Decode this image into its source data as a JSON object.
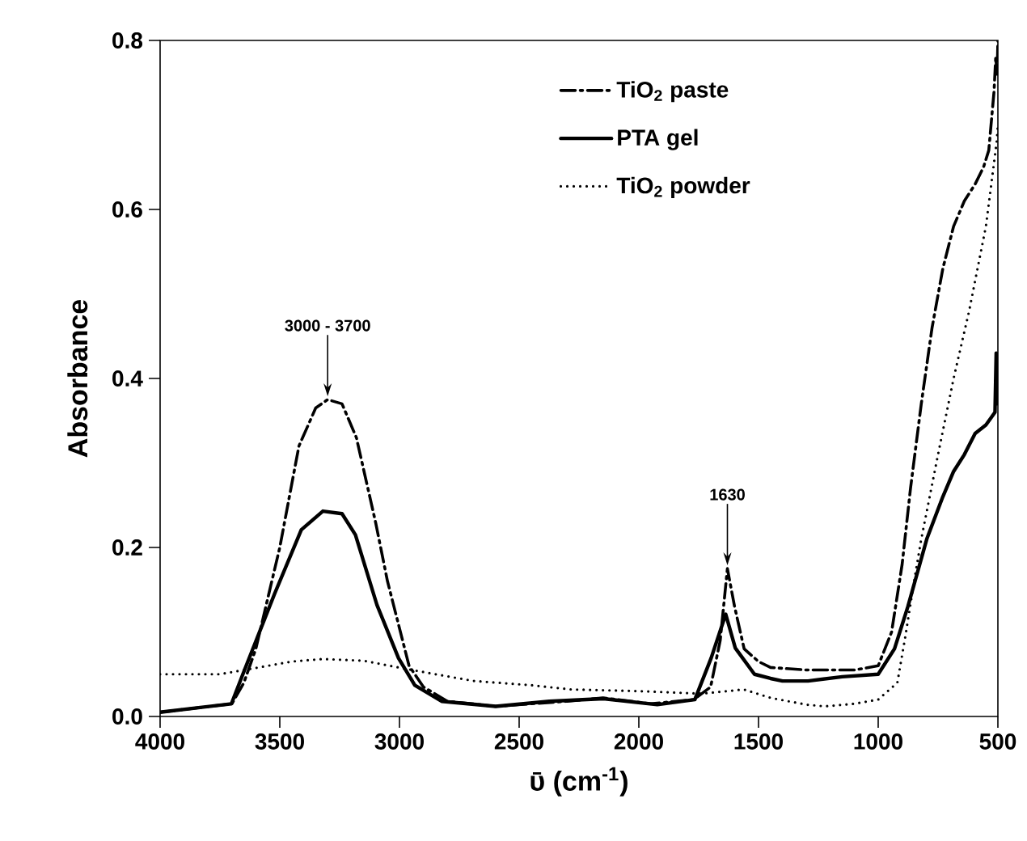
{
  "chart_data": {
    "type": "line",
    "xlabel": "ῡ (cm$^{-1}$)",
    "ylabel": "Absorbance",
    "xlim": [
      4000,
      500
    ],
    "xticks": [
      4000,
      3500,
      3000,
      2500,
      2000,
      1500,
      1000,
      500
    ],
    "ylim": [
      0,
      0.8
    ],
    "yticks": [
      {
        "value": 0,
        "label": "0.0"
      },
      {
        "value": 0.2,
        "label": "0.2"
      },
      {
        "value": 0.4,
        "label": "0.4"
      },
      {
        "value": 0.6,
        "label": "0.6"
      },
      {
        "value": 0.8,
        "label": "0.8"
      }
    ],
    "grid": false,
    "legend": "top right",
    "marker": "none",
    "series": [
      {
        "name": "TiO$_{2}$ paste",
        "color": "#000000",
        "line_style": "dashdot",
        "x": [
          4000,
          3700,
          3650,
          3600,
          3500,
          3420,
          3350,
          3300,
          3240,
          3180,
          3100,
          3050,
          2960,
          2900,
          2800,
          2600,
          2300,
          2150,
          1950,
          1770,
          1700,
          1660,
          1630,
          1600,
          1560,
          1500,
          1450,
          1300,
          1100,
          1000,
          944,
          900,
          865,
          820,
          775,
          730,
          685,
          640,
          595,
          560,
          538,
          516,
          509,
          503,
          500
        ],
        "values": [
          0.005,
          0.015,
          0.04,
          0.08,
          0.2,
          0.32,
          0.365,
          0.375,
          0.37,
          0.33,
          0.23,
          0.16,
          0.06,
          0.035,
          0.018,
          0.012,
          0.018,
          0.022,
          0.015,
          0.02,
          0.035,
          0.09,
          0.175,
          0.13,
          0.08,
          0.065,
          0.058,
          0.055,
          0.055,
          0.06,
          0.1,
          0.18,
          0.27,
          0.37,
          0.46,
          0.53,
          0.58,
          0.61,
          0.63,
          0.65,
          0.67,
          0.74,
          0.78,
          0.76,
          0.8
        ]
      },
      {
        "name": "PTA gel",
        "color": "#000000",
        "line_style": "solid",
        "x": [
          4000,
          3702,
          3646,
          3522,
          3410,
          3320,
          3240,
          3184,
          3094,
          3004,
          2936,
          2824,
          2598,
          2374,
          2148,
          1923,
          1766,
          1698,
          1637,
          1597,
          1517,
          1450,
          1400,
          1293,
          1150,
          1000,
          932,
          876,
          797,
          730,
          685,
          640,
          595,
          550,
          527,
          512,
          507,
          504,
          500
        ],
        "values": [
          0.005,
          0.015,
          0.056,
          0.145,
          0.221,
          0.243,
          0.24,
          0.215,
          0.132,
          0.069,
          0.037,
          0.018,
          0.012,
          0.018,
          0.021,
          0.014,
          0.02,
          0.069,
          0.121,
          0.081,
          0.05,
          0.045,
          0.042,
          0.042,
          0.047,
          0.05,
          0.08,
          0.13,
          0.21,
          0.26,
          0.29,
          0.31,
          0.335,
          0.345,
          0.354,
          0.36,
          0.43,
          0.37,
          0.39
        ]
      },
      {
        "name": "TiO$_{2}$ powder",
        "color": "#000000",
        "line_style": "dotted",
        "x": [
          4000,
          3750,
          3589,
          3450,
          3320,
          3150,
          3004,
          2850,
          2689,
          2450,
          2283,
          2000,
          1739,
          1630,
          1562,
          1449,
          1300,
          1223,
          1100,
          1000,
          920,
          887,
          850,
          820,
          750,
          685,
          620,
          550,
          505,
          500
        ],
        "values": [
          0.05,
          0.05,
          0.058,
          0.065,
          0.068,
          0.066,
          0.058,
          0.05,
          0.042,
          0.037,
          0.032,
          0.03,
          0.027,
          0.03,
          0.032,
          0.022,
          0.014,
          0.012,
          0.015,
          0.02,
          0.04,
          0.094,
          0.16,
          0.21,
          0.31,
          0.4,
          0.48,
          0.58,
          0.68,
          0.7
        ]
      }
    ],
    "annotations": [
      {
        "text": "3000 - 3700",
        "x": 3300,
        "y": 0.375
      },
      {
        "text": "1630",
        "x": 1630,
        "y": 0.175
      }
    ]
  }
}
